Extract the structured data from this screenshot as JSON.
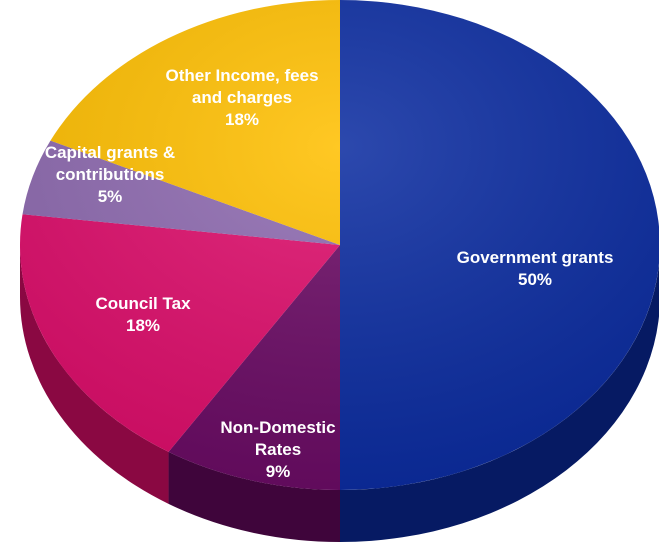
{
  "chart_data": {
    "type": "pie",
    "title": "",
    "slices": [
      {
        "label_lines": [
          "Government grants"
        ],
        "value_label": "50%",
        "value": 50,
        "color": "#0a2ba0",
        "dark": "#061a63"
      },
      {
        "label_lines": [
          "Non-Domestic",
          "Rates"
        ],
        "value_label": "9%",
        "value": 9,
        "color": "#6a0a64",
        "dark": "#3f053b"
      },
      {
        "label_lines": [
          "Council Tax"
        ],
        "value_label": "18%",
        "value": 18,
        "color": "#de0d6b",
        "dark": "#8a0842"
      },
      {
        "label_lines": [
          "Capital grants &",
          "contributions"
        ],
        "value_label": "5%",
        "value": 5,
        "color": "#8e6ab0",
        "dark": "#5a4172"
      },
      {
        "label_lines": [
          "Other Income, fees",
          "and charges"
        ],
        "value_label": "18%",
        "value": 18,
        "color": "#ffbf00",
        "dark": "#a67c00"
      }
    ]
  }
}
